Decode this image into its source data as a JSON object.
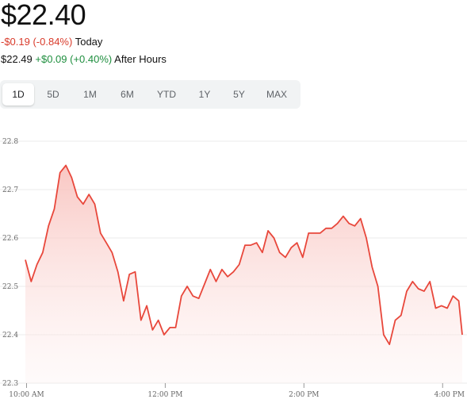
{
  "quote": {
    "price": "$22.40",
    "today_change": "-$0.19 (-0.84%)",
    "today_label": "Today",
    "after_hours_price": "$22.49",
    "after_hours_change": "+$0.09 (+0.40%)",
    "after_hours_label": "After Hours"
  },
  "range_tabs": [
    "1D",
    "5D",
    "1M",
    "6M",
    "YTD",
    "1Y",
    "5Y",
    "MAX"
  ],
  "active_tab": "1D",
  "colors": {
    "line": "#e8473b",
    "negative": "#d93b2b",
    "positive": "#1e8e3e"
  },
  "chart_data": {
    "type": "area",
    "ylim": [
      22.3,
      22.8
    ],
    "yticks": [
      "22.8",
      "22.7",
      "22.6",
      "22.5",
      "22.4",
      "22.3"
    ],
    "xticks": [
      {
        "label": "10:00 AM",
        "t": 10.0
      },
      {
        "label": "12:00 PM",
        "t": 12.0
      },
      {
        "label": "2:00 PM",
        "t": 14.0
      },
      {
        "label": "4:00 PM",
        "t": 16.0
      }
    ],
    "xlim": [
      9.983,
      16.283
    ],
    "grid": true,
    "x": [
      9.983,
      10.067,
      10.15,
      10.233,
      10.317,
      10.4,
      10.483,
      10.567,
      10.65,
      10.733,
      10.817,
      10.9,
      10.983,
      11.067,
      11.15,
      11.233,
      11.317,
      11.4,
      11.483,
      11.567,
      11.65,
      11.733,
      11.817,
      11.9,
      11.983,
      12.067,
      12.15,
      12.233,
      12.317,
      12.4,
      12.483,
      12.567,
      12.65,
      12.733,
      12.817,
      12.9,
      12.983,
      13.067,
      13.15,
      13.233,
      13.317,
      13.4,
      13.483,
      13.567,
      13.65,
      13.733,
      13.817,
      13.9,
      13.983,
      14.067,
      14.15,
      14.233,
      14.317,
      14.4,
      14.483,
      14.567,
      14.65,
      14.733,
      14.817,
      14.9,
      14.983,
      15.067,
      15.15,
      15.233,
      15.317,
      15.4,
      15.483,
      15.567,
      15.65,
      15.733,
      15.817,
      15.9,
      15.983,
      16.067,
      16.15,
      16.233,
      16.283
    ],
    "values": [
      22.555,
      22.51,
      22.545,
      22.57,
      22.625,
      22.66,
      22.735,
      22.75,
      22.725,
      22.685,
      22.67,
      22.69,
      22.67,
      22.61,
      22.59,
      22.57,
      22.53,
      22.47,
      22.525,
      22.53,
      22.43,
      22.46,
      22.41,
      22.43,
      22.4,
      22.415,
      22.415,
      22.48,
      22.5,
      22.48,
      22.475,
      22.505,
      22.535,
      22.51,
      22.535,
      22.52,
      22.53,
      22.545,
      22.585,
      22.585,
      22.59,
      22.57,
      22.615,
      22.6,
      22.57,
      22.56,
      22.58,
      22.59,
      22.56,
      22.61,
      22.61,
      22.61,
      22.62,
      22.62,
      22.63,
      22.645,
      22.63,
      22.625,
      22.64,
      22.6,
      22.54,
      22.5,
      22.4,
      22.38,
      22.43,
      22.44,
      22.49,
      22.51,
      22.495,
      22.49,
      22.51,
      22.455,
      22.46,
      22.455,
      22.48,
      22.47,
      22.4
    ]
  }
}
